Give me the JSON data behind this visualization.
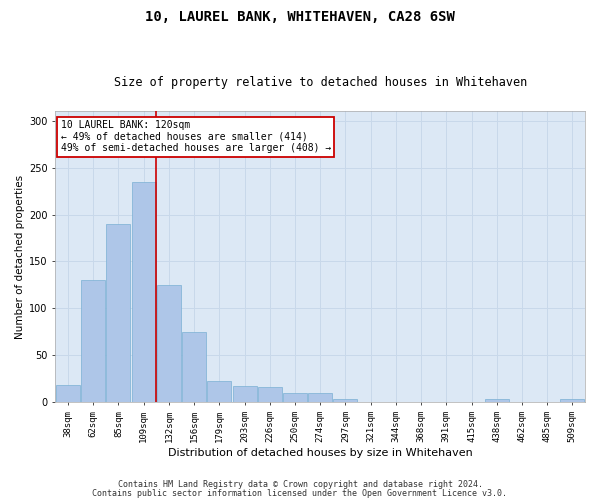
{
  "title1": "10, LAUREL BANK, WHITEHAVEN, CA28 6SW",
  "title2": "Size of property relative to detached houses in Whitehaven",
  "xlabel": "Distribution of detached houses by size in Whitehaven",
  "ylabel": "Number of detached properties",
  "footer1": "Contains HM Land Registry data © Crown copyright and database right 2024.",
  "footer2": "Contains public sector information licensed under the Open Government Licence v3.0.",
  "bar_labels": [
    "38sqm",
    "62sqm",
    "85sqm",
    "109sqm",
    "132sqm",
    "156sqm",
    "179sqm",
    "203sqm",
    "226sqm",
    "250sqm",
    "274sqm",
    "297sqm",
    "321sqm",
    "344sqm",
    "368sqm",
    "391sqm",
    "415sqm",
    "438sqm",
    "462sqm",
    "485sqm",
    "509sqm"
  ],
  "bar_values": [
    18,
    130,
    190,
    235,
    125,
    75,
    22,
    17,
    16,
    10,
    10,
    3,
    0,
    0,
    0,
    0,
    0,
    3,
    0,
    0,
    3
  ],
  "bar_color": "#aec6e8",
  "bar_edge_color": "#7ab0d4",
  "grid_color": "#c8d8ea",
  "bg_color": "#dce8f5",
  "property_line_x": 3.5,
  "annotation_text1": "10 LAUREL BANK: 120sqm",
  "annotation_text2": "← 49% of detached houses are smaller (414)",
  "annotation_text3": "49% of semi-detached houses are larger (408) →",
  "annotation_box_color": "#ffffff",
  "annotation_border_color": "#cc0000",
  "ylim": [
    0,
    310
  ],
  "yticks": [
    0,
    50,
    100,
    150,
    200,
    250,
    300
  ],
  "title1_fontsize": 10,
  "title2_fontsize": 8.5,
  "xlabel_fontsize": 8,
  "ylabel_fontsize": 7.5,
  "tick_fontsize": 6.5,
  "annot_fontsize": 7,
  "footer_fontsize": 6
}
